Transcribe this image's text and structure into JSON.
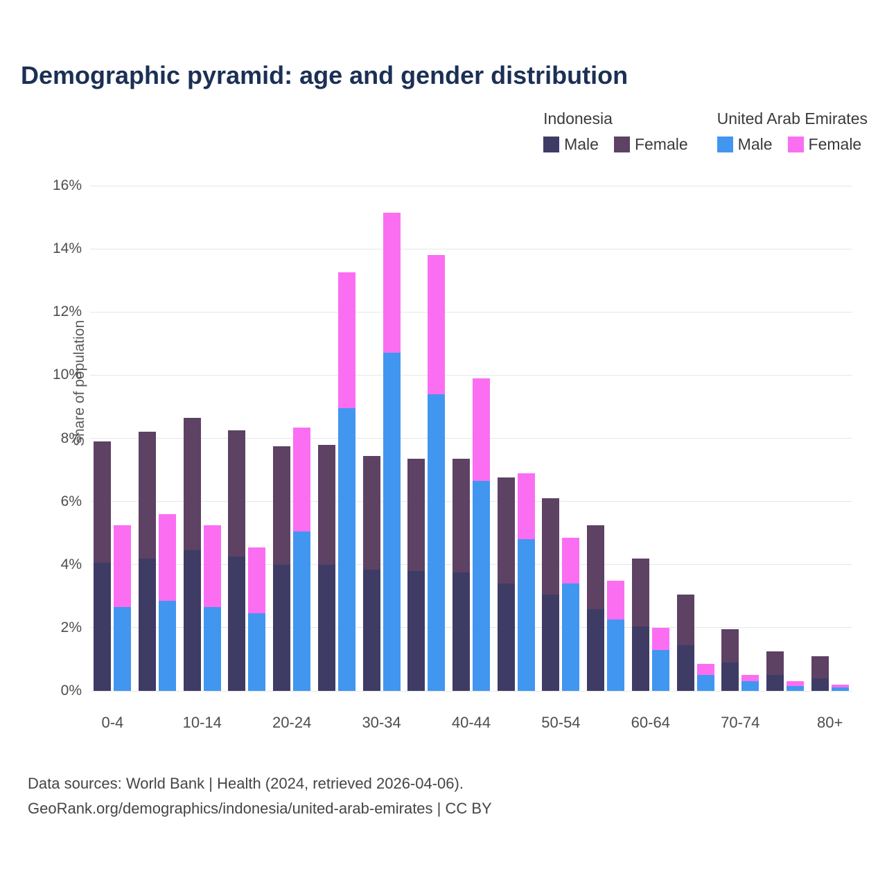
{
  "title": "Demographic pyramid: age and gender distribution",
  "ylabel": "Share of population",
  "legend": {
    "groups": [
      {
        "country": "Indonesia",
        "items": [
          {
            "label": "Male",
            "color": "#3e3c65"
          },
          {
            "label": "Female",
            "color": "#5d4264"
          }
        ]
      },
      {
        "country": "United Arab Emirates",
        "items": [
          {
            "label": "Male",
            "color": "#4196f0"
          },
          {
            "label": "Female",
            "color": "#fb6ef2"
          }
        ]
      }
    ]
  },
  "footer": {
    "line1": "Data sources: World Bank | Health (2024, retrieved 2026-04-06).",
    "line2": "GeoRank.org/demographics/indonesia/united-arab-emirates | CC BY"
  },
  "chart_data": {
    "type": "bar",
    "subtype": "grouped-stacked-column",
    "title": "Demographic pyramid: age and gender distribution",
    "xlabel": "",
    "ylabel": "Share of population",
    "ylim": [
      0,
      16
    ],
    "yticks": [
      0,
      2,
      4,
      6,
      8,
      10,
      12,
      14,
      16
    ],
    "ytick_labels": [
      "0%",
      "2%",
      "4%",
      "6%",
      "8%",
      "10%",
      "12%",
      "14%",
      "16%"
    ],
    "grid": true,
    "legend_position": "top-right",
    "categories": [
      "0-4",
      "5-9",
      "10-14",
      "15-19",
      "20-24",
      "25-29",
      "30-34",
      "35-39",
      "40-44",
      "45-49",
      "50-54",
      "55-59",
      "60-64",
      "65-69",
      "70-74",
      "75-79",
      "80+"
    ],
    "xtick_labels_shown": [
      "0-4",
      "10-14",
      "20-24",
      "30-34",
      "40-44",
      "50-54",
      "60-64",
      "70-74",
      "80+"
    ],
    "stacks": [
      {
        "name": "Indonesia",
        "segments": [
          "Indonesia Male",
          "Indonesia Female"
        ]
      },
      {
        "name": "United Arab Emirates",
        "segments": [
          "UAE Male",
          "UAE Female"
        ]
      }
    ],
    "series": [
      {
        "name": "Indonesia Male",
        "stack": 0,
        "color": "#3e3c65",
        "values": [
          4.05,
          4.2,
          4.45,
          4.25,
          4.0,
          4.0,
          3.85,
          3.8,
          3.75,
          3.4,
          3.05,
          2.6,
          2.05,
          1.45,
          0.9,
          0.5,
          0.4
        ]
      },
      {
        "name": "Indonesia Female",
        "stack": 0,
        "color": "#5d4264",
        "values": [
          3.85,
          4.0,
          4.2,
          4.0,
          3.75,
          3.8,
          3.6,
          3.55,
          3.6,
          3.35,
          3.05,
          2.65,
          2.15,
          1.6,
          1.05,
          0.75,
          0.7
        ]
      },
      {
        "name": "UAE Male",
        "stack": 1,
        "color": "#4196f0",
        "values": [
          2.65,
          2.85,
          2.65,
          2.45,
          5.05,
          8.95,
          10.7,
          9.4,
          6.65,
          4.8,
          3.4,
          2.25,
          1.3,
          0.5,
          0.3,
          0.15,
          0.1
        ]
      },
      {
        "name": "UAE Female",
        "stack": 1,
        "color": "#fb6ef2",
        "values": [
          2.6,
          2.75,
          2.6,
          2.1,
          3.3,
          4.3,
          4.45,
          4.4,
          3.25,
          2.1,
          1.45,
          1.25,
          0.7,
          0.35,
          0.2,
          0.15,
          0.1
        ]
      }
    ]
  }
}
